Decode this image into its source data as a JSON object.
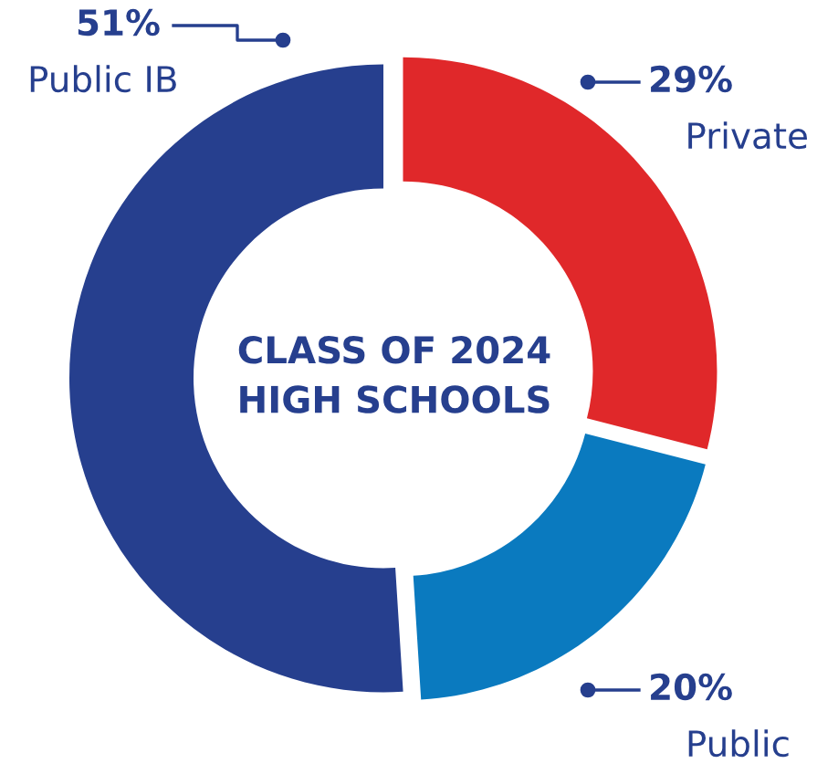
{
  "chart_data": {
    "type": "donut",
    "title": "CLASS OF 2024\nHIGH SCHOOLS",
    "categories": [
      "Private",
      "Public",
      "Public IB"
    ],
    "values": [
      29,
      20,
      51
    ],
    "colors": [
      "#e0282a",
      "#0a7abf",
      "#263f8e"
    ],
    "value_labels": [
      "29%",
      "20%",
      "51%"
    ],
    "legend": false
  }
}
